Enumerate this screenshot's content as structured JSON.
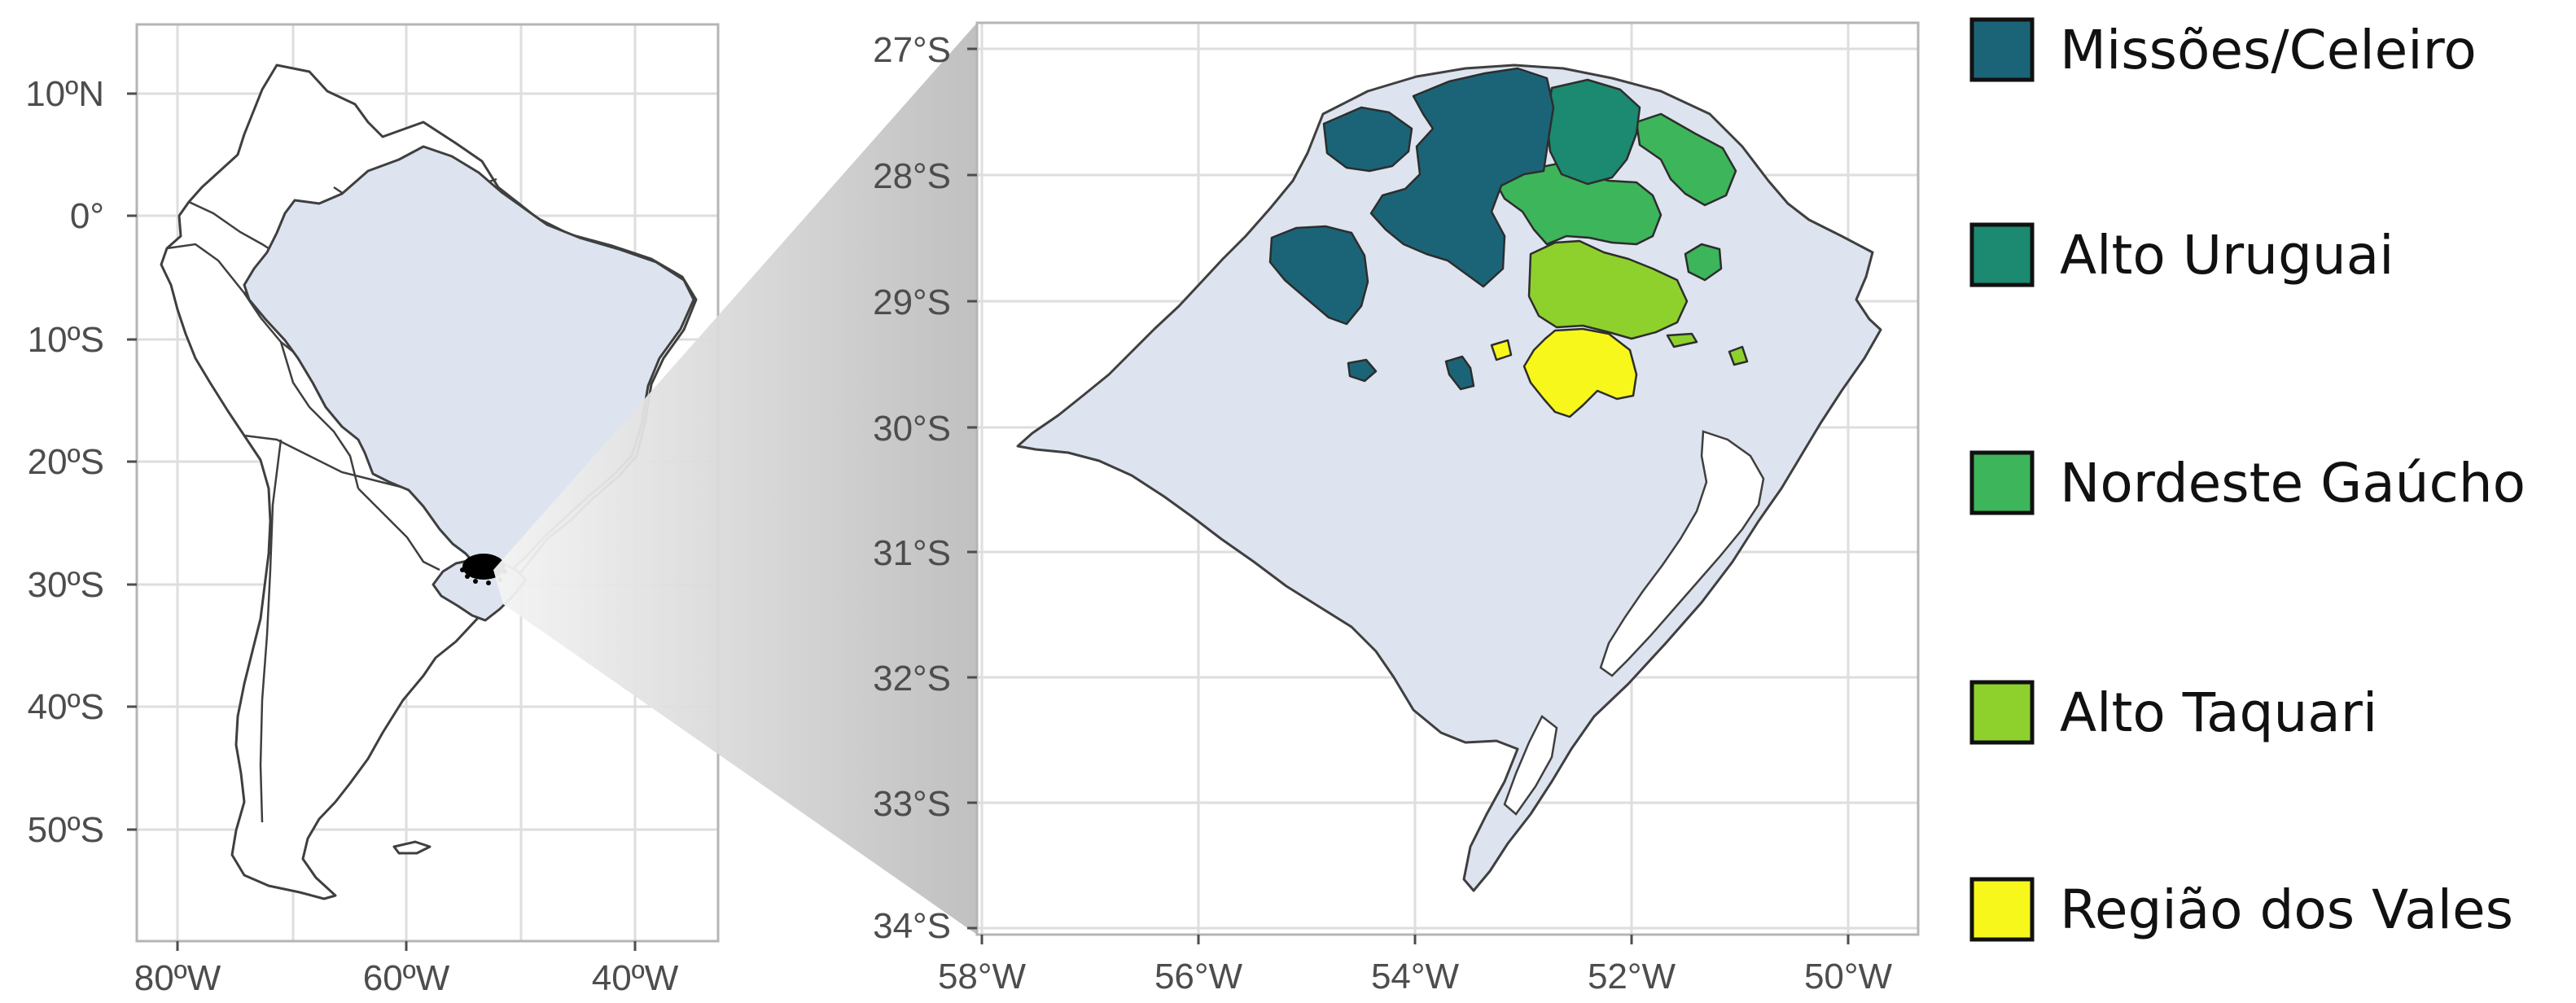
{
  "overview_map": {
    "lat_ticks": [
      "10ºN",
      "0°",
      "10ºS",
      "20ºS",
      "30ºS",
      "40ºS",
      "50ºS"
    ],
    "lon_ticks": [
      "80ºW",
      "60ºW",
      "40ºW"
    ],
    "highlighted_country": "Brazil",
    "highlighted_state": "Rio Grande do Sul",
    "fill_color": "#dde4ef",
    "outline_color": "#3f3f3f"
  },
  "detail_map": {
    "lat_ticks": [
      "27°S",
      "28°S",
      "29°S",
      "30°S",
      "31°S",
      "32°S",
      "33°S",
      "34°S"
    ],
    "lon_ticks": [
      "58°W",
      "56°W",
      "54°W",
      "52°W",
      "50°W"
    ],
    "state_fill": "#dde4ef"
  },
  "legend": {
    "items": [
      {
        "label": "Missões/Celeiro",
        "color": "#1b6478"
      },
      {
        "label": "Alto Uruguai",
        "color": "#1b8a70"
      },
      {
        "label": "Nordeste Gaúcho",
        "color": "#3db55b"
      },
      {
        "label": "Alto Taquari",
        "color": "#8ed12c"
      },
      {
        "label": "Região dos Vales",
        "color": "#f8f71c"
      }
    ]
  }
}
